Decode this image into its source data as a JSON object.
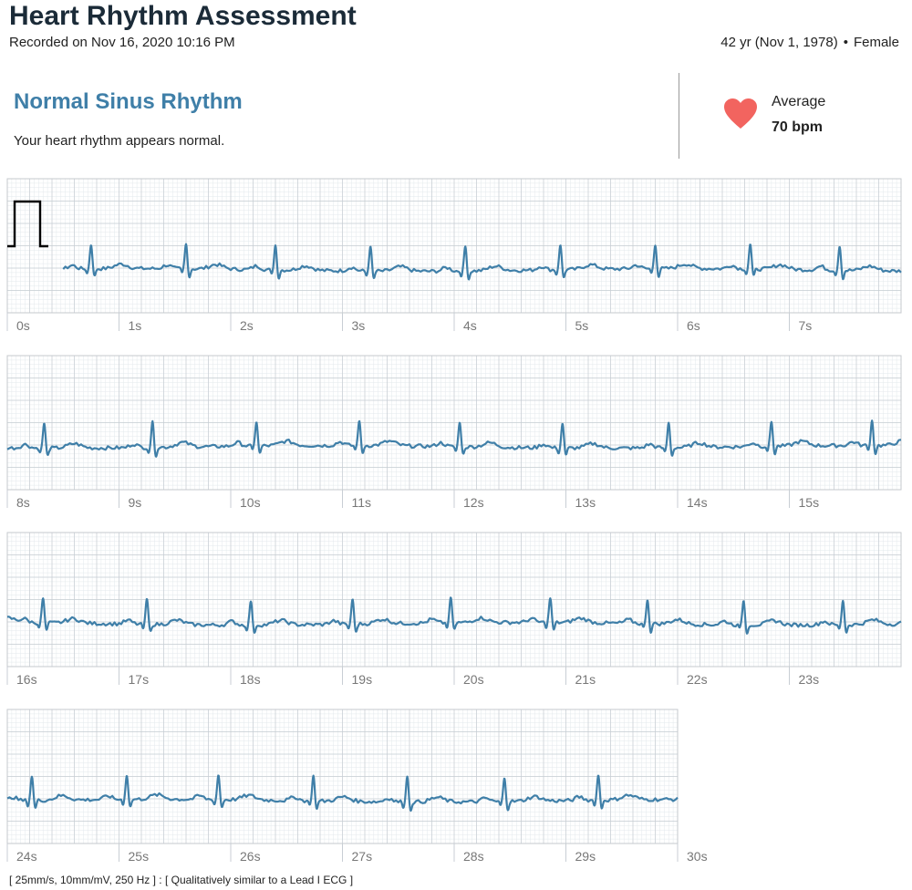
{
  "header": {
    "title": "Heart Rhythm Assessment",
    "recorded": "Recorded on Nov 16, 2020 10:16 PM",
    "age": "42 yr (Nov 1, 1978)",
    "separator": "•",
    "sex": "Female"
  },
  "result": {
    "classification": "Normal Sinus Rhythm",
    "description": "Your heart rhythm appears normal.",
    "average_label": "Average",
    "average_value": "70 bpm",
    "heart_icon": "heart-icon",
    "heart_color": "#f2645f"
  },
  "footnote": "[ 25mm/s, 10mm/mV, 250 Hz ] : [ Qualitatively similar to a Lead I ECG ]",
  "colors": {
    "trace": "#3f7fa8",
    "grid_minor": "#e3e8ec",
    "grid_major": "#c8ced4",
    "strip_border": "#c5c9cd",
    "calibration": "#000000",
    "title": "#1b2b38",
    "accent": "#3f7fa8"
  },
  "chart_data": {
    "type": "line",
    "title": "",
    "xlabel": "",
    "ylabel": "",
    "x_unit": "s",
    "paper_speed_mm_per_s": 25,
    "gain_mm_per_mv": 10,
    "sample_rate_hz": 250,
    "xlim": [
      0,
      30
    ],
    "seconds_per_strip": 8,
    "grid": true,
    "calibration_pulse_mv": 1,
    "tick_labels": [
      "0s",
      "1s",
      "2s",
      "3s",
      "4s",
      "5s",
      "6s",
      "7s",
      "8s",
      "9s",
      "10s",
      "11s",
      "12s",
      "13s",
      "14s",
      "15s",
      "16s",
      "17s",
      "18s",
      "19s",
      "20s",
      "21s",
      "22s",
      "23s",
      "24s",
      "25s",
      "26s",
      "27s",
      "28s",
      "29s",
      "30s"
    ],
    "beats_s": [
      0.75,
      1.6,
      2.4,
      3.25,
      4.1,
      4.95,
      5.8,
      6.65,
      7.45,
      8.33,
      9.3,
      10.23,
      11.15,
      12.05,
      12.97,
      13.92,
      14.84,
      15.74,
      16.32,
      17.25,
      18.18,
      19.09,
      19.97,
      20.86,
      21.73,
      22.59,
      23.48,
      24.22,
      25.07,
      25.89,
      26.74,
      27.58,
      28.45,
      29.29
    ],
    "r_amplitude_mv": 0.55
  }
}
